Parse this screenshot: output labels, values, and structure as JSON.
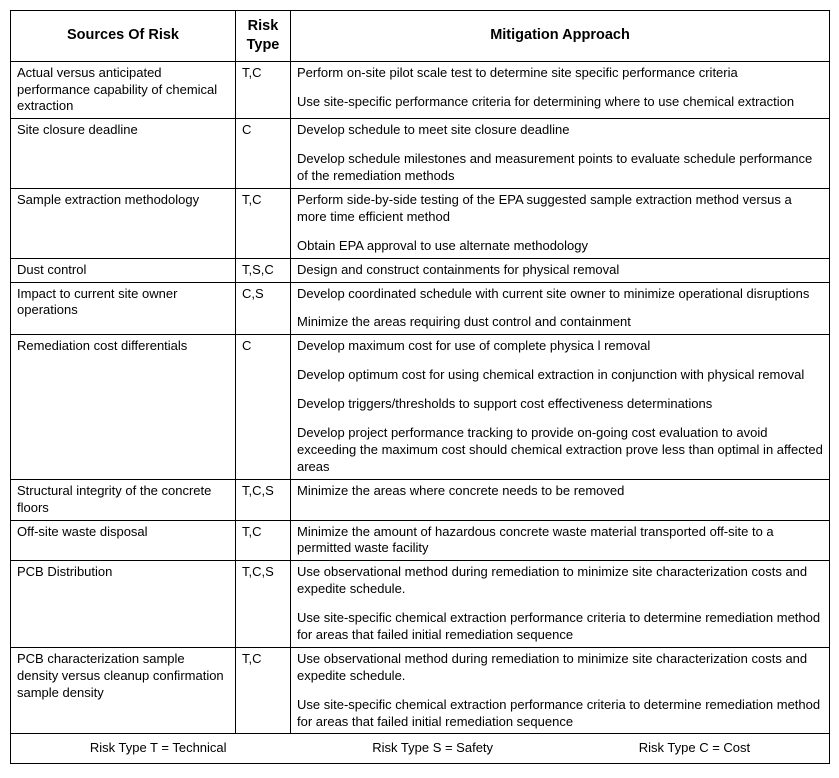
{
  "columns": [
    "Sources Of Risk",
    "Risk Type",
    "Mitigation Approach"
  ],
  "rows": [
    {
      "source": "Actual versus anticipated performance capability of chemical extraction",
      "risk": "T,C",
      "mitigation": [
        "Perform on-site pilot scale test to determine site specific performance criteria",
        "Use site-specific performance criteria for determining where to use chemical extraction"
      ]
    },
    {
      "source": "Site closure deadline",
      "risk": "C",
      "mitigation": [
        "Develop schedule to meet site closure deadline",
        "Develop schedule milestones and measurement points to evaluate schedule performance of the remediation methods"
      ]
    },
    {
      "source": "Sample extraction methodology",
      "risk": "T,C",
      "mitigation": [
        "Perform side-by-side testing of the EPA suggested sample extraction method versus a more time efficient method",
        "Obtain EPA approval to use alternate methodology"
      ]
    },
    {
      "source": "Dust control",
      "risk": "T,S,C",
      "mitigation": [
        "Design and construct containments for physical removal"
      ]
    },
    {
      "source": "Impact to current site owner operations",
      "risk": "C,S",
      "mitigation": [
        "Develop coordinated schedule with current site owner to minimize operational disruptions",
        "Minimize the areas requiring dust control and containment"
      ]
    },
    {
      "source": "Remediation cost differentials",
      "risk": "C",
      "mitigation": [
        "Develop maximum cost for use of complete physica l removal",
        "Develop optimum cost for using chemical extraction in conjunction with physical removal",
        "Develop triggers/thresholds to support cost effectiveness determinations",
        "Develop project performance tracking to provide on-going cost evaluation to avoid exceeding the maximum cost should chemical extraction prove less than optimal in affected areas"
      ]
    },
    {
      "source": "Structural integrity of the concrete floors",
      "risk": "T,C,S",
      "mitigation": [
        "Minimize the areas where concrete needs to be removed"
      ]
    },
    {
      "source": "Off-site waste disposal",
      "risk": "T,C",
      "mitigation": [
        "Minimize the amount of hazardous concrete waste material transported off-site to a permitted waste facility"
      ]
    },
    {
      "source": "PCB Distribution",
      "risk": "T,C,S",
      "mitigation": [
        "Use observational method during remediation to minimize site characterization costs and expedite schedule.",
        "Use site-specific chemical extraction performance criteria to determine remediation method for areas that failed initial remediation sequence"
      ]
    },
    {
      "source": "PCB characterization sample density versus cleanup confirmation sample density",
      "risk": "T,C",
      "mitigation": [
        "Use observational method during remediation to minimize site characterization costs and expedite schedule.",
        "Use site-specific chemical extraction performance criteria to determine remediation method for areas that failed initial remediation sequence"
      ]
    }
  ],
  "legend": [
    "Risk Type T = Technical",
    "Risk Type S = Safety",
    "Risk Type C = Cost"
  ]
}
